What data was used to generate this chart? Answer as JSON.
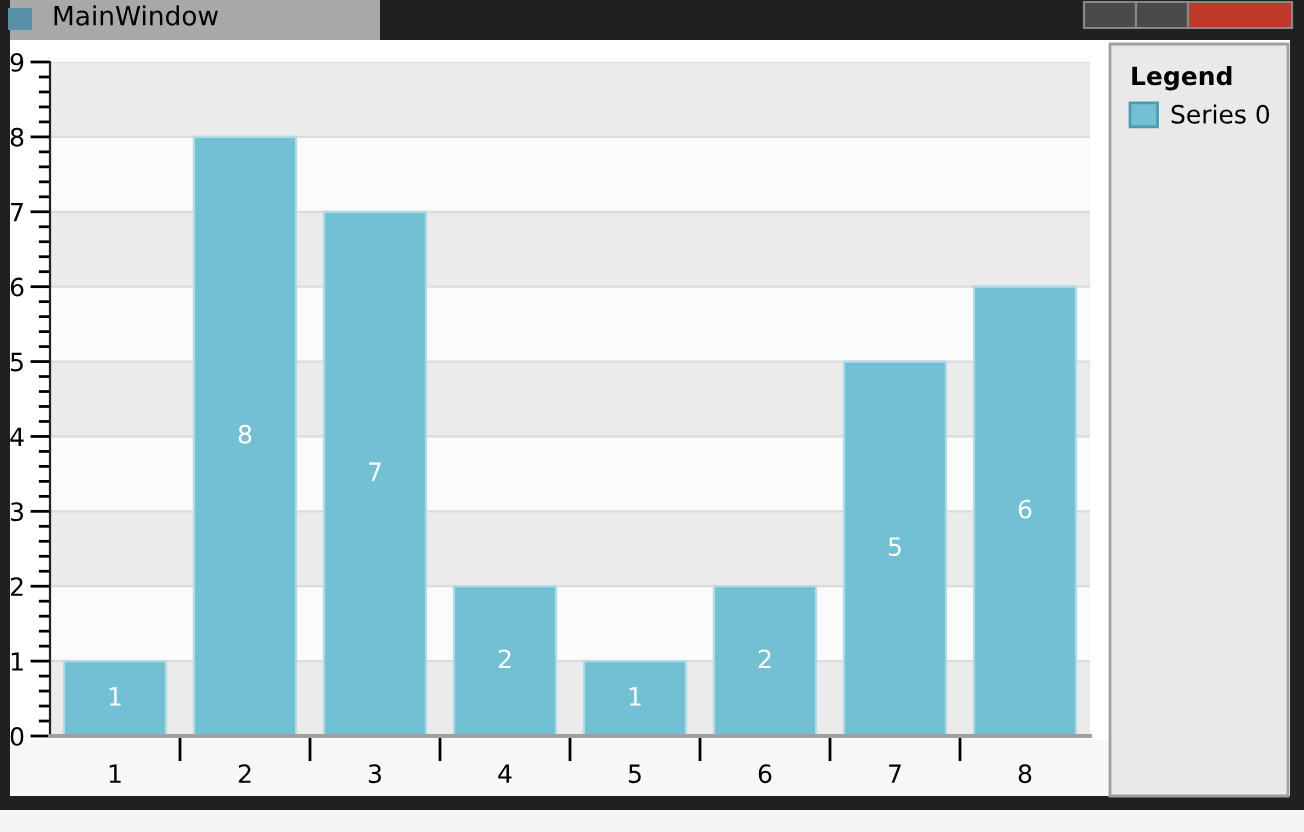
{
  "chart_data": {
    "type": "bar",
    "title": "MainWindow",
    "legend_title": "Legend",
    "categories": [
      "1",
      "2",
      "3",
      "4",
      "5",
      "6",
      "7",
      "8"
    ],
    "series": [
      {
        "name": "Series 0",
        "color": "#73c0d4",
        "values": [
          1,
          8,
          7,
          2,
          1,
          2,
          5,
          6
        ]
      }
    ],
    "ylim": [
      0,
      9
    ],
    "yticks": [
      0,
      1,
      2,
      3,
      4,
      5,
      6,
      7,
      8,
      9
    ],
    "grid": "y",
    "legend": "right",
    "data_labels": true
  }
}
